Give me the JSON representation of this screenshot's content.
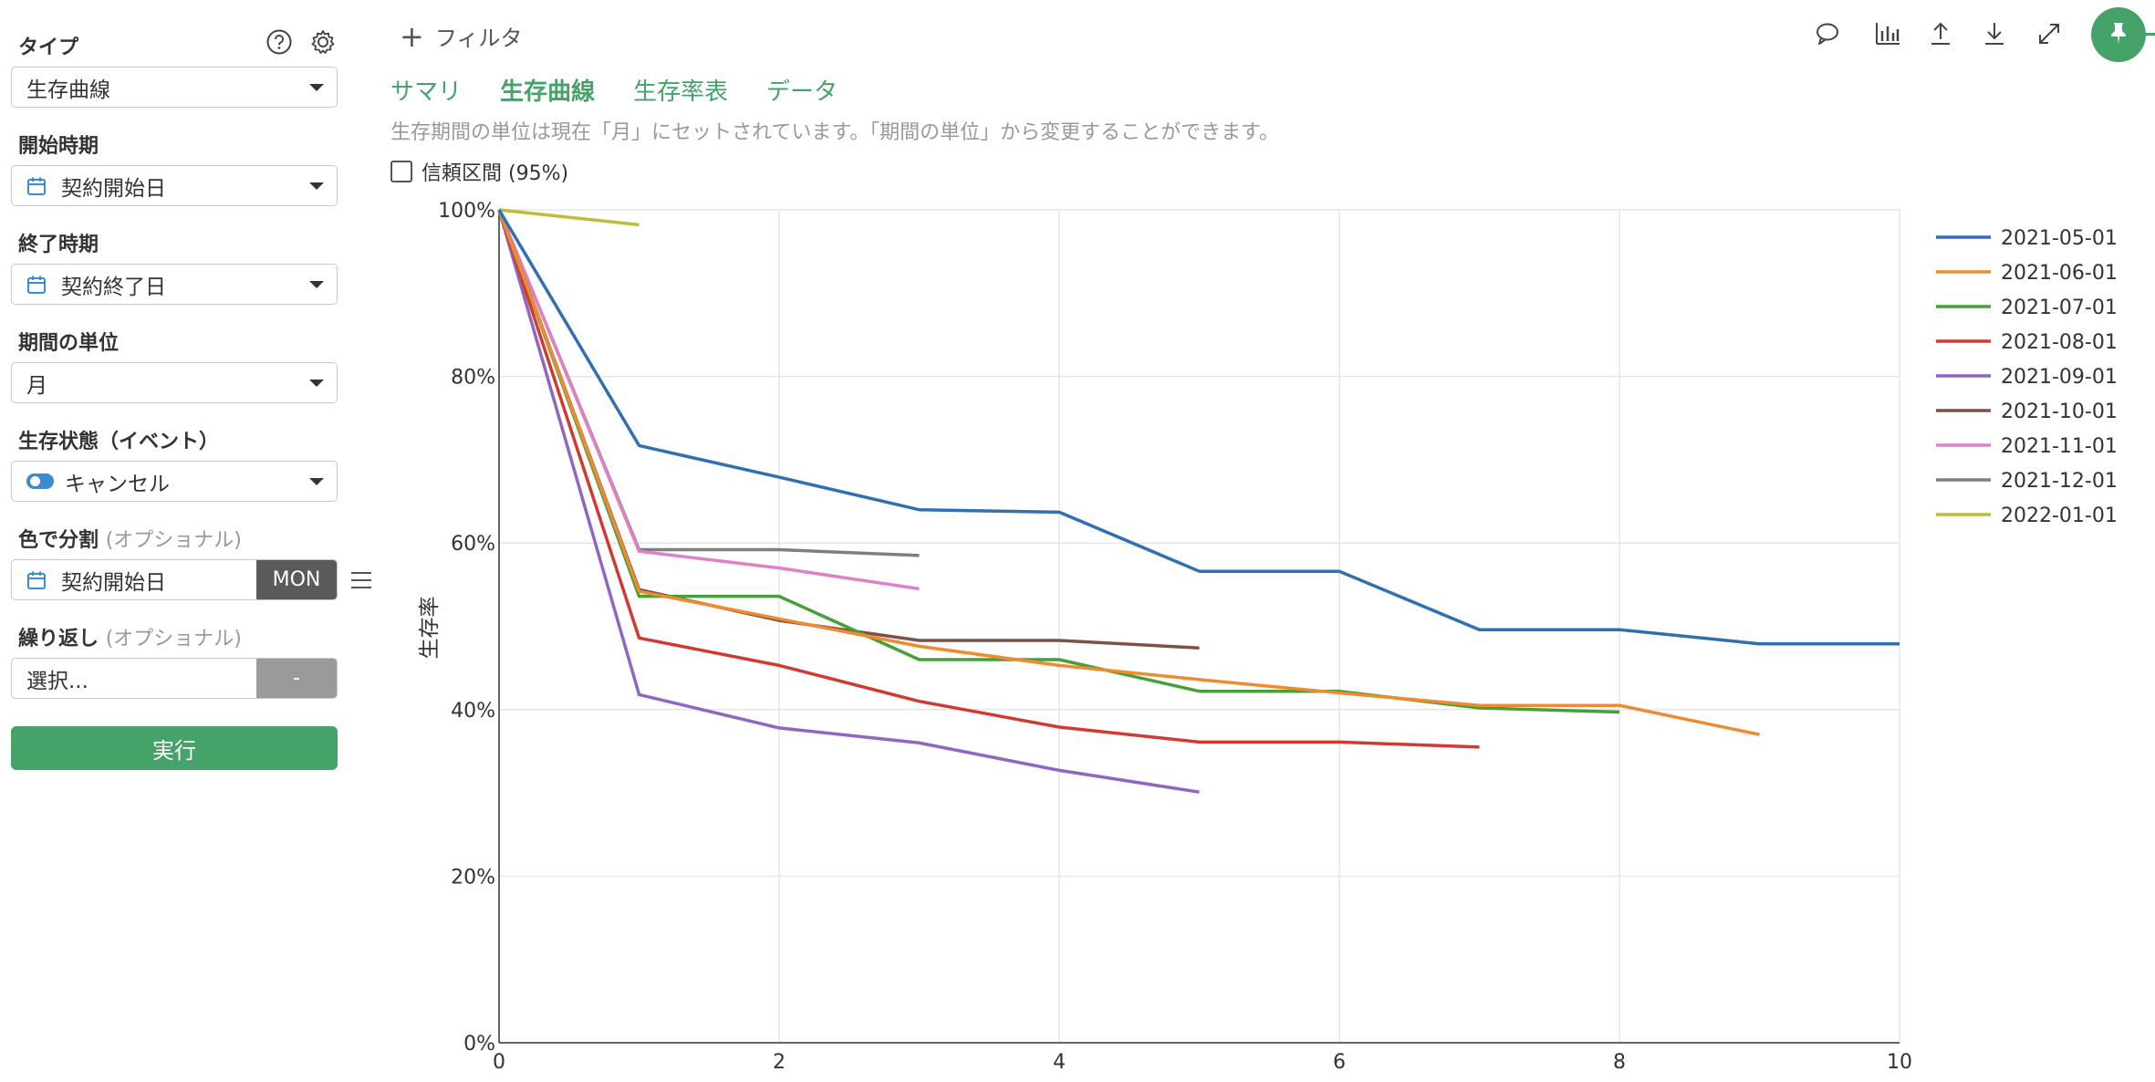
{
  "sidebar": {
    "type_label": "タイプ",
    "type_value": "生存曲線",
    "start_label": "開始時期",
    "start_value": "契約開始日",
    "end_label": "終了時期",
    "end_value": "契約終了日",
    "unit_label": "期間の単位",
    "unit_value": "月",
    "event_label": "生存状態（イベント）",
    "event_value": "キャンセル",
    "color_label": "色で分割",
    "color_optional": "(オプショナル)",
    "color_value": "契約開始日",
    "color_mode": "MON",
    "repeat_label": "繰り返し",
    "repeat_optional": "(オプショナル)",
    "repeat_placeholder": "選択...",
    "repeat_mode": "-",
    "run_label": "実行",
    "icons": [
      "help-icon",
      "gear-icon",
      "calendar-icon",
      "toggle-icon",
      "menu-icon",
      "chevron-down-icon"
    ]
  },
  "topbar": {
    "filter_label": "フィルタ",
    "icons": [
      "comment-icon",
      "chart-icon",
      "upload-icon",
      "download-icon",
      "expand-icon",
      "pin-icon"
    ]
  },
  "tabs": [
    {
      "label": "サマリ",
      "active": false
    },
    {
      "label": "生存曲線",
      "active": true
    },
    {
      "label": "生存率表",
      "active": false
    },
    {
      "label": "データ",
      "active": false
    }
  ],
  "info_text": "生存期間の単位は現在「月」にセットされています。「期間の単位」から変更することができます。",
  "ci_label": "信頼区間 (95%)",
  "ci_checked": false,
  "colors": {
    "accent": "#45a36a",
    "dark_button": "#5a5a5a",
    "grey_button": "#9a9a9a"
  },
  "chart_data": {
    "type": "line",
    "title": "",
    "xlabel": "",
    "ylabel": "生存率",
    "xlim": [
      0,
      10
    ],
    "ylim": [
      0,
      100
    ],
    "x_ticks": [
      "0",
      "2",
      "4",
      "6",
      "8",
      "10"
    ],
    "y_ticks": [
      "0%",
      "20%",
      "40%",
      "60%",
      "80%",
      "100%"
    ],
    "grid": true,
    "legend_position": "right",
    "series": [
      {
        "name": "2021-05-01",
        "color": "#3070b0",
        "x": [
          0,
          1,
          2,
          3,
          4,
          5,
          6,
          7,
          8,
          9,
          10
        ],
        "values": [
          100,
          71.7,
          67.9,
          64.0,
          63.7,
          56.6,
          56.6,
          49.6,
          49.6,
          47.9,
          47.9
        ]
      },
      {
        "name": "2021-06-01",
        "color": "#f08a30",
        "x": [
          0,
          1,
          2,
          3,
          4,
          5,
          6,
          7,
          8,
          9
        ],
        "values": [
          100,
          54.2,
          50.9,
          47.6,
          45.3,
          43.6,
          42.0,
          40.5,
          40.5,
          37.0
        ]
      },
      {
        "name": "2021-07-01",
        "color": "#45a03a",
        "x": [
          0,
          1,
          2,
          3,
          4,
          5,
          6,
          7,
          8
        ],
        "values": [
          100,
          53.6,
          53.6,
          46.0,
          46.0,
          42.2,
          42.2,
          40.2,
          39.7
        ]
      },
      {
        "name": "2021-08-01",
        "color": "#d03a30",
        "x": [
          0,
          1,
          2,
          3,
          4,
          5,
          6,
          7
        ],
        "values": [
          100,
          48.6,
          45.3,
          41.0,
          37.9,
          36.1,
          36.1,
          35.5
        ]
      },
      {
        "name": "2021-09-01",
        "color": "#9066c0",
        "x": [
          0,
          1,
          2,
          3,
          4,
          5
        ],
        "values": [
          100,
          41.8,
          37.8,
          36.0,
          32.7,
          30.1
        ]
      },
      {
        "name": "2021-10-01",
        "color": "#7a5248",
        "x": [
          0,
          1,
          2,
          3,
          4,
          5
        ],
        "values": [
          100,
          54.4,
          50.7,
          48.3,
          48.3,
          47.4
        ]
      },
      {
        "name": "2021-11-01",
        "color": "#e080c8",
        "x": [
          0,
          1,
          2,
          3
        ],
        "values": [
          100,
          59.0,
          57.0,
          54.5
        ]
      },
      {
        "name": "2021-12-01",
        "color": "#7f7f7f",
        "x": [
          0,
          1,
          2,
          3
        ],
        "values": [
          100,
          59.2,
          59.2,
          58.5
        ]
      },
      {
        "name": "2022-01-01",
        "color": "#bcbd3a",
        "x": [
          0,
          1
        ],
        "values": [
          100,
          98.2
        ]
      }
    ]
  }
}
